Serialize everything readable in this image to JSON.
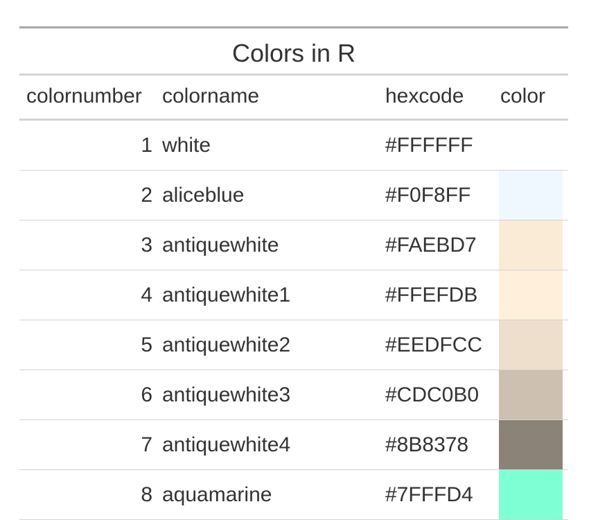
{
  "table": {
    "title": "Colors in R",
    "columns": [
      "colornumber",
      "colorname",
      "hexcode",
      "color"
    ],
    "rows": [
      {
        "number": "1",
        "name": "white",
        "hex": "#FFFFFF",
        "swatch": "#FFFFFF"
      },
      {
        "number": "2",
        "name": "aliceblue",
        "hex": "#F0F8FF",
        "swatch": "#F0F8FF"
      },
      {
        "number": "3",
        "name": "antiquewhite",
        "hex": "#FAEBD7",
        "swatch": "#FAEBD7"
      },
      {
        "number": "4",
        "name": "antiquewhite1",
        "hex": "#FFEFDB",
        "swatch": "#FFEFDB"
      },
      {
        "number": "5",
        "name": "antiquewhite2",
        "hex": "#EEDFCC",
        "swatch": "#EEDFCC"
      },
      {
        "number": "6",
        "name": "antiquewhite3",
        "hex": "#CDC0B0",
        "swatch": "#CDC0B0"
      },
      {
        "number": "7",
        "name": "antiquewhite4",
        "hex": "#8B8378",
        "swatch": "#8B8378"
      },
      {
        "number": "8",
        "name": "aquamarine",
        "hex": "#7FFFD4",
        "swatch": "#7FFFD4"
      }
    ]
  }
}
